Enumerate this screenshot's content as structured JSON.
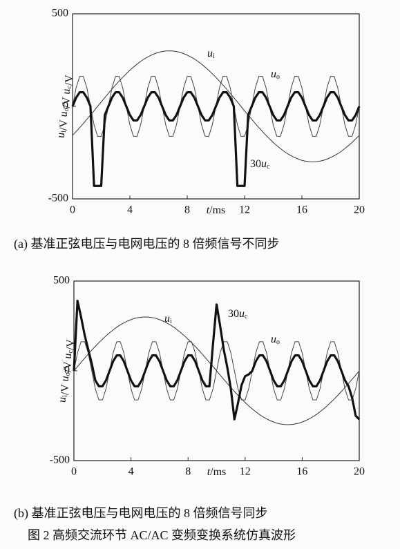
{
  "chart_data": [
    {
      "type": "line",
      "caption": "(a)  基准正弦电压与电网电压的 8 倍频信号不同步",
      "xlabel": "t/ms",
      "ylabel": "ui/V uo/V uc/V",
      "xlim": [
        0,
        20
      ],
      "xticks": [
        0,
        4,
        8,
        12,
        16,
        20
      ],
      "ylim": [
        -500,
        500
      ],
      "yticks": [
        500,
        0,
        -500
      ],
      "x": [
        0,
        0.25,
        0.5,
        0.75,
        1,
        1.25,
        1.5,
        1.75,
        2,
        2.25,
        2.5,
        2.75,
        3,
        3.25,
        3.5,
        3.75,
        4,
        4.25,
        4.5,
        4.75,
        5,
        5.25,
        5.5,
        5.75,
        6,
        6.25,
        6.5,
        6.75,
        7,
        7.25,
        7.5,
        7.75,
        8,
        8.25,
        8.5,
        8.75,
        9,
        9.25,
        9.5,
        9.75,
        10,
        10.25,
        10.5,
        10.75,
        11,
        11.25,
        11.5,
        11.75,
        12,
        12.25,
        12.5,
        12.75,
        13,
        13.25,
        13.5,
        13.75,
        14,
        14.25,
        14.5,
        14.75,
        15,
        15.25,
        15.5,
        15.75,
        16,
        16.25,
        16.5,
        16.75,
        17,
        17.25,
        17.5,
        17.75,
        18,
        18.25,
        18.5,
        18.75,
        19,
        19.25,
        19.5,
        19.75,
        20
      ],
      "series": [
        {
          "name": "ui",
          "color": "#333333",
          "values": [
            -157,
            -136,
            -115,
            -93,
            -70,
            -47,
            -24,
            0,
            24,
            47,
            70,
            93,
            115,
            136,
            157,
            176,
            195,
            212,
            228,
            243,
            256,
            267,
            277,
            285,
            292,
            296,
            299,
            300,
            299,
            296,
            292,
            285,
            277,
            267,
            256,
            243,
            228,
            212,
            195,
            176,
            157,
            136,
            115,
            93,
            70,
            47,
            24,
            0,
            -24,
            -47,
            -70,
            -93,
            -115,
            -136,
            -157,
            -176,
            -195,
            -212,
            -228,
            -243,
            -256,
            -267,
            -277,
            -285,
            -292,
            -296,
            -299,
            -300,
            -299,
            -296,
            -292,
            -285,
            -277,
            -267,
            -256,
            -243,
            -228,
            -212,
            -195,
            -176,
            -157
          ]
        },
        {
          "name": "uo",
          "color": "#444444",
          "values": [
            0,
            100,
            162,
            162,
            100,
            0,
            -100,
            -162,
            -162,
            -100,
            0,
            100,
            162,
            162,
            100,
            0,
            -100,
            -162,
            -162,
            -100,
            0,
            100,
            162,
            162,
            100,
            0,
            -100,
            -162,
            -162,
            -100,
            0,
            100,
            162,
            162,
            100,
            0,
            -100,
            -162,
            -162,
            -100,
            0,
            100,
            162,
            162,
            100,
            0,
            -100,
            -162,
            -162,
            -100,
            0,
            100,
            162,
            162,
            100,
            0,
            -100,
            -162,
            -162,
            -100,
            0,
            100,
            162,
            162,
            100,
            0,
            -100,
            -162,
            -162,
            -100,
            0,
            100,
            162,
            162,
            100,
            0,
            -100,
            -162,
            -162,
            -100,
            0
          ]
        },
        {
          "name": "30uc",
          "color": "#111111",
          "values": [
            0,
            47,
            76,
            76,
            47,
            0,
            -430,
            -430,
            -430,
            -47,
            0,
            47,
            76,
            76,
            47,
            0,
            -47,
            -76,
            -76,
            -47,
            0,
            47,
            76,
            76,
            47,
            0,
            -47,
            -76,
            -76,
            -47,
            0,
            47,
            76,
            76,
            47,
            0,
            -47,
            -76,
            -76,
            -47,
            0,
            47,
            76,
            76,
            47,
            0,
            -430,
            -430,
            -430,
            -47,
            0,
            47,
            76,
            76,
            47,
            0,
            -47,
            -76,
            -76,
            -47,
            0,
            47,
            76,
            76,
            47,
            0,
            -47,
            -76,
            -76,
            -47,
            0,
            47,
            76,
            76,
            47,
            0,
            -47,
            -76,
            -76,
            -47,
            0
          ]
        }
      ]
    },
    {
      "type": "line",
      "caption": "(b)  基准正弦电压与电网电压的 8 倍频信号同步",
      "xlabel": "t/ms",
      "ylabel": "ui/V uo/V uc/V",
      "xlim": [
        0,
        20
      ],
      "xticks": [
        0,
        4,
        8,
        12,
        16,
        20
      ],
      "ylim": [
        -500,
        500
      ],
      "yticks": [
        500,
        0,
        -500
      ],
      "x": [
        0,
        0.25,
        0.5,
        0.75,
        1,
        1.25,
        1.5,
        1.75,
        2,
        2.25,
        2.5,
        2.75,
        3,
        3.25,
        3.5,
        3.75,
        4,
        4.25,
        4.5,
        4.75,
        5,
        5.25,
        5.5,
        5.75,
        6,
        6.25,
        6.5,
        6.75,
        7,
        7.25,
        7.5,
        7.75,
        8,
        8.25,
        8.5,
        8.75,
        9,
        9.25,
        9.5,
        9.75,
        10,
        10.25,
        10.5,
        10.75,
        11,
        11.25,
        11.5,
        11.75,
        12,
        12.25,
        12.5,
        12.75,
        13,
        13.25,
        13.5,
        13.75,
        14,
        14.25,
        14.5,
        14.75,
        15,
        15.25,
        15.5,
        15.75,
        16,
        16.25,
        16.5,
        16.75,
        17,
        17.25,
        17.5,
        17.75,
        18,
        18.25,
        18.5,
        18.75,
        19,
        19.25,
        19.5,
        19.75,
        20
      ],
      "series": [
        {
          "name": "ui",
          "color": "#333333",
          "values": [
            0,
            24,
            47,
            70,
            93,
            115,
            136,
            157,
            176,
            195,
            212,
            228,
            243,
            256,
            267,
            277,
            285,
            292,
            296,
            299,
            300,
            299,
            296,
            292,
            285,
            277,
            267,
            256,
            243,
            228,
            212,
            195,
            176,
            157,
            136,
            115,
            93,
            70,
            47,
            24,
            0,
            -24,
            -47,
            -70,
            -93,
            -115,
            -136,
            -157,
            -176,
            -195,
            -212,
            -228,
            -243,
            -256,
            -267,
            -277,
            -285,
            -292,
            -296,
            -299,
            -300,
            -299,
            -296,
            -292,
            -285,
            -277,
            -267,
            -256,
            -243,
            -228,
            -212,
            -195,
            -176,
            -157,
            -136,
            -115,
            -93,
            -70,
            -47,
            -24,
            0
          ]
        },
        {
          "name": "uo",
          "color": "#444444",
          "values": [
            0,
            100,
            162,
            162,
            100,
            0,
            -100,
            -162,
            -162,
            -100,
            0,
            100,
            162,
            162,
            100,
            0,
            -100,
            -162,
            -162,
            -100,
            0,
            100,
            162,
            162,
            100,
            0,
            -100,
            -162,
            -162,
            -100,
            0,
            100,
            162,
            162,
            100,
            0,
            -100,
            -162,
            -162,
            -100,
            0,
            100,
            162,
            162,
            100,
            0,
            -100,
            -162,
            -162,
            -100,
            0,
            100,
            162,
            162,
            100,
            0,
            -100,
            -162,
            -162,
            -100,
            0,
            100,
            162,
            162,
            100,
            0,
            -100,
            -162,
            -162,
            -100,
            0,
            100,
            162,
            162,
            100,
            0,
            -100,
            -162,
            -162,
            -100,
            0
          ]
        },
        {
          "name": "30uc",
          "color": "#111111",
          "values": [
            0,
            390,
            300,
            200,
            120,
            40,
            -53,
            -86,
            -86,
            -53,
            0,
            53,
            86,
            86,
            53,
            0,
            -53,
            -86,
            -86,
            -53,
            0,
            53,
            86,
            86,
            53,
            0,
            -53,
            -86,
            -86,
            -53,
            0,
            53,
            86,
            86,
            53,
            0,
            -53,
            -86,
            -86,
            150,
            370,
            250,
            120,
            20,
            -100,
            -270,
            -180,
            -80,
            -30,
            -20,
            0,
            53,
            86,
            86,
            53,
            0,
            -53,
            -86,
            -86,
            -53,
            0,
            53,
            86,
            86,
            53,
            0,
            -53,
            -86,
            -86,
            -53,
            0,
            53,
            86,
            86,
            53,
            0,
            -53,
            -86,
            -150,
            -250,
            -270
          ]
        }
      ]
    }
  ],
  "figure_caption": "图 2   高频交流环节 AC/AC 变频变换系统仿真波形"
}
